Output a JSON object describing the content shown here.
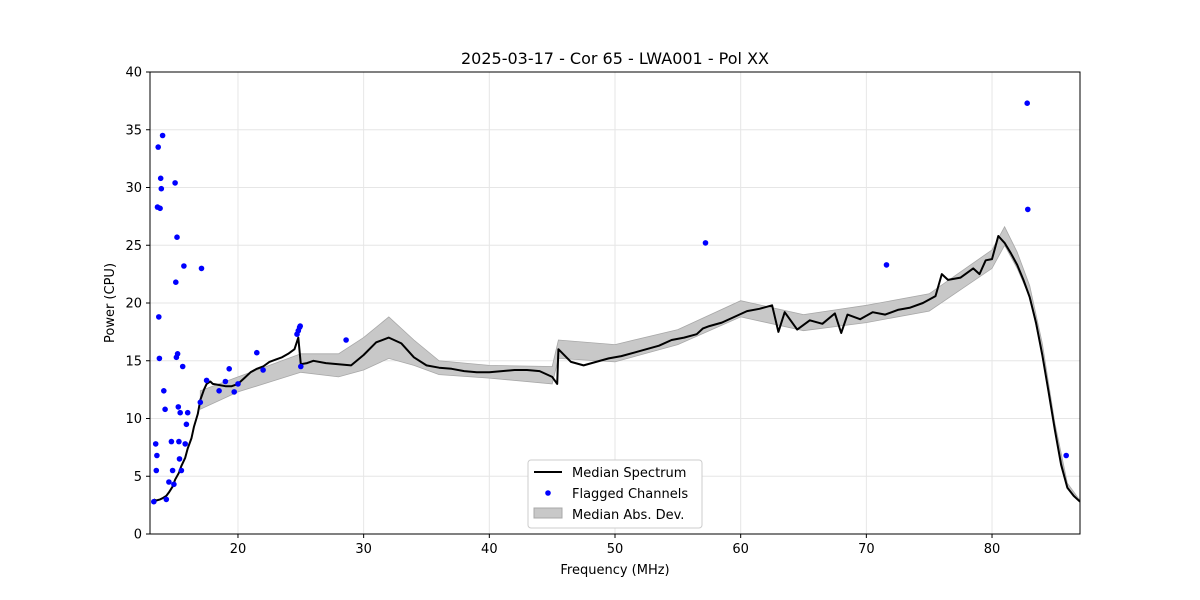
{
  "chart_data": {
    "type": "line",
    "title": "2025-03-17 - Cor 65 - LWA001 - Pol XX",
    "xlabel": "Frequency (MHz)",
    "ylabel": "Power (CPU)",
    "xlim": [
      13,
      87
    ],
    "ylim": [
      0,
      40
    ],
    "x_ticks": [
      20,
      30,
      40,
      50,
      60,
      70,
      80
    ],
    "y_ticks": [
      0,
      5,
      10,
      15,
      20,
      25,
      30,
      35,
      40
    ],
    "grid": true,
    "legend_position": "lower center",
    "legend": [
      "Median Spectrum",
      "Flagged Channels",
      "Median Abs. Dev."
    ],
    "colors": {
      "median": "#000000",
      "flagged": "#0000ff",
      "mad_fill": "#c8c8c8",
      "mad_edge": "#a8a8a8"
    },
    "series": [
      {
        "name": "Median Spectrum",
        "style": "line",
        "x": [
          13.3,
          13.5,
          13.8,
          14.0,
          14.3,
          14.5,
          14.8,
          15.0,
          15.3,
          15.5,
          15.8,
          16.0,
          16.3,
          16.5,
          16.8,
          17.0,
          17.3,
          17.5,
          17.8,
          18.0,
          18.5,
          19.0,
          19.5,
          20.0,
          20.5,
          21.0,
          21.5,
          22.0,
          22.5,
          23.0,
          23.5,
          24.0,
          24.5,
          24.8,
          25.0,
          25.5,
          26.0,
          27.0,
          28.0,
          29.0,
          30.0,
          31.0,
          32.0,
          33.0,
          34.0,
          35.0,
          36.0,
          37.0,
          38.0,
          39.0,
          40.0,
          41.0,
          42.0,
          43.0,
          44.0,
          45.0,
          45.4,
          45.5,
          46.5,
          47.5,
          48.5,
          49.5,
          50.5,
          51.5,
          52.5,
          53.5,
          54.5,
          55.5,
          56.5,
          57.0,
          57.5,
          58.5,
          59.5,
          60.5,
          61.5,
          62.5,
          63.0,
          63.5,
          64.5,
          65.5,
          66.5,
          67.5,
          68.0,
          68.5,
          69.5,
          70.5,
          71.5,
          72.5,
          73.5,
          74.5,
          75.5,
          76.0,
          76.5,
          77.5,
          78.5,
          79.0,
          79.5,
          80.0,
          80.5,
          81.0,
          81.5,
          82.0,
          82.5,
          83.0,
          83.5,
          84.0,
          84.5,
          85.0,
          85.5,
          86.0,
          86.5,
          87.0
        ],
        "values": [
          3.0,
          2.9,
          3.0,
          3.1,
          3.3,
          3.6,
          4.1,
          4.7,
          5.3,
          5.9,
          6.6,
          7.4,
          8.3,
          9.3,
          10.4,
          11.6,
          12.5,
          13.0,
          13.2,
          13.0,
          12.9,
          12.8,
          12.8,
          13.0,
          13.5,
          14.0,
          14.3,
          14.5,
          14.9,
          15.1,
          15.3,
          15.6,
          16.0,
          17.0,
          14.7,
          14.8,
          15.0,
          14.8,
          14.7,
          14.6,
          15.5,
          16.6,
          17.0,
          16.5,
          15.3,
          14.6,
          14.4,
          14.3,
          14.1,
          14.0,
          14.0,
          14.1,
          14.2,
          14.2,
          14.1,
          13.6,
          13.0,
          16.0,
          14.9,
          14.6,
          14.9,
          15.2,
          15.4,
          15.7,
          16.0,
          16.3,
          16.8,
          17.0,
          17.3,
          17.8,
          18.0,
          18.3,
          18.8,
          19.3,
          19.5,
          19.8,
          17.5,
          19.2,
          17.7,
          18.5,
          18.2,
          19.1,
          17.4,
          19.0,
          18.6,
          19.2,
          19.0,
          19.4,
          19.6,
          20.0,
          20.6,
          22.5,
          22.0,
          22.2,
          23.0,
          22.5,
          23.7,
          23.8,
          25.8,
          25.2,
          24.3,
          23.3,
          22.0,
          20.5,
          18.3,
          15.5,
          12.3,
          9.0,
          6.0,
          4.0,
          3.3,
          2.8
        ]
      },
      {
        "name": "Flagged Channels",
        "style": "scatter",
        "x": [
          13.3,
          13.45,
          13.5,
          13.55,
          13.6,
          13.65,
          13.7,
          13.75,
          13.8,
          13.85,
          13.9,
          14.0,
          14.1,
          14.2,
          14.3,
          14.5,
          14.7,
          14.8,
          14.9,
          15.0,
          15.05,
          15.1,
          15.15,
          15.2,
          15.25,
          15.3,
          15.35,
          15.4,
          15.5,
          15.6,
          15.7,
          15.8,
          15.9,
          16.0,
          17.0,
          17.1,
          17.5,
          18.5,
          19.0,
          19.3,
          19.7,
          20.0,
          21.5,
          22.0,
          24.7,
          24.8,
          24.9,
          24.95,
          25.0,
          28.6,
          57.2,
          71.6,
          82.8,
          82.85,
          85.9
        ],
        "values": [
          2.8,
          7.8,
          5.5,
          6.8,
          28.3,
          33.5,
          18.8,
          15.2,
          28.2,
          30.8,
          29.9,
          34.5,
          12.4,
          10.8,
          3.0,
          4.5,
          8.0,
          5.5,
          4.3,
          30.4,
          21.8,
          15.3,
          25.7,
          15.6,
          11.0,
          8.0,
          6.5,
          10.5,
          5.5,
          14.5,
          23.2,
          7.8,
          9.5,
          10.5,
          11.4,
          23.0,
          13.3,
          12.4,
          13.2,
          14.3,
          12.3,
          13.0,
          15.7,
          14.2,
          17.3,
          17.6,
          17.9,
          18.0,
          14.5,
          16.8,
          25.2,
          23.3,
          37.3,
          28.1,
          6.8
        ]
      },
      {
        "name": "Median Abs. Dev.",
        "style": "band",
        "x": [
          17.0,
          20.0,
          25.0,
          28.0,
          30.0,
          32.0,
          34.0,
          36.0,
          40.0,
          45.0,
          45.5,
          50.0,
          55.0,
          60.0,
          65.0,
          70.0,
          75.0,
          80.0,
          81.0,
          82.0,
          83.0,
          84.0,
          85.0,
          86.0,
          87.0
        ],
        "lower": [
          10.8,
          12.3,
          14.0,
          13.6,
          14.2,
          15.2,
          14.6,
          13.8,
          13.5,
          13.0,
          15.2,
          14.9,
          16.4,
          18.8,
          17.6,
          18.3,
          19.3,
          23.0,
          25.0,
          23.0,
          20.5,
          15.5,
          9.0,
          4.0,
          2.8
        ],
        "upper": [
          12.4,
          13.6,
          15.6,
          15.6,
          17.0,
          18.8,
          16.8,
          15.0,
          14.6,
          14.5,
          16.8,
          16.4,
          17.7,
          20.2,
          19.0,
          19.8,
          20.8,
          24.6,
          26.6,
          24.4,
          21.5,
          16.5,
          9.6,
          4.4,
          2.9
        ]
      }
    ]
  }
}
